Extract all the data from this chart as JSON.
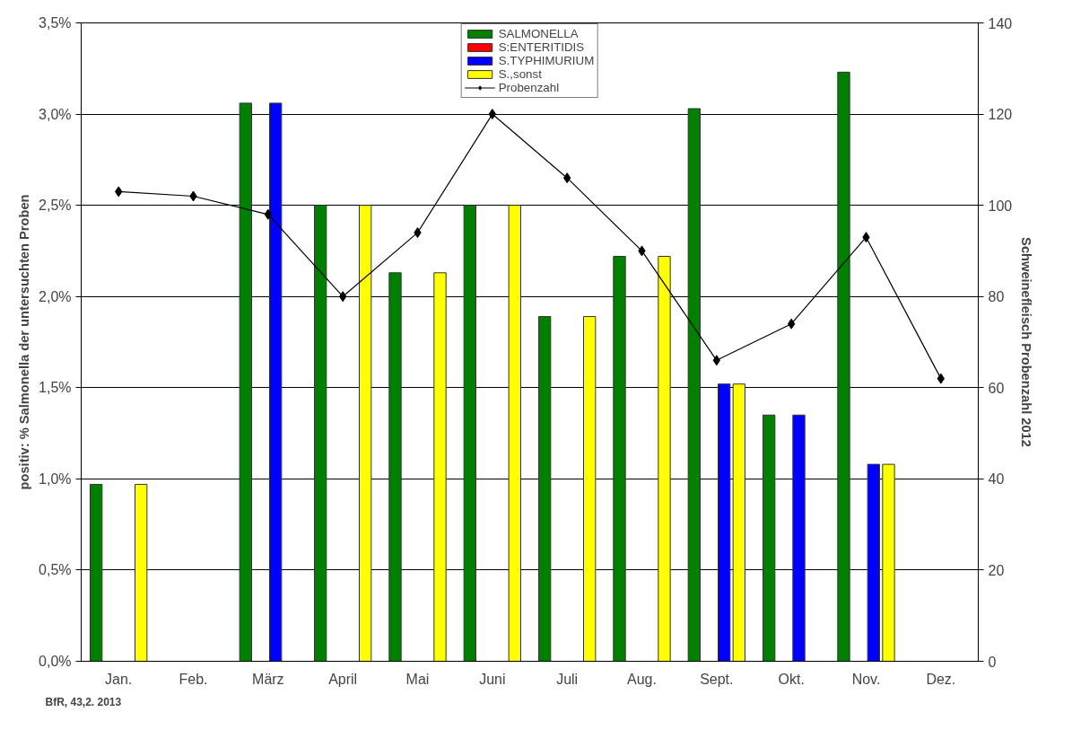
{
  "chart_data": {
    "type": "bar",
    "categories": [
      "Jan.",
      "Feb.",
      "März",
      "April",
      "Mai",
      "Juni",
      "Juli",
      "Aug.",
      "Sept.",
      "Okt.",
      "Nov.",
      "Dez."
    ],
    "series": [
      {
        "name": "SALMONELLA",
        "color": "#008000",
        "values": [
          0.97,
          null,
          3.06,
          2.5,
          2.13,
          2.5,
          1.89,
          2.22,
          3.03,
          1.35,
          3.23,
          null
        ]
      },
      {
        "name": "S:ENTERITIDIS",
        "color": "#ff0000",
        "values": [
          null,
          null,
          null,
          null,
          null,
          null,
          null,
          null,
          null,
          null,
          null,
          null
        ]
      },
      {
        "name": "S.TYPHIMURIUM",
        "color": "#0000ff",
        "values": [
          null,
          null,
          3.06,
          null,
          null,
          null,
          null,
          null,
          1.52,
          1.35,
          1.08,
          null
        ]
      },
      {
        "name": "S.,sonst",
        "color": "#ffff00",
        "values": [
          0.97,
          null,
          null,
          2.5,
          2.13,
          2.5,
          1.89,
          2.22,
          1.52,
          null,
          1.08,
          null
        ]
      },
      {
        "name": "Probenzahl",
        "type": "line",
        "axis": "y2",
        "color": "#000000",
        "marker": "diamond",
        "values": [
          103,
          102,
          98,
          80,
          94,
          120,
          106,
          90,
          66,
          74,
          93,
          62
        ]
      }
    ],
    "ylabel": "positiv: % Salmonella der untersuchten Proben",
    "y2label": "Schweinefleisch Probenzahl 2012",
    "ylim": [
      0,
      3.5
    ],
    "yticks": [
      {
        "value": 0,
        "label": "0,0%"
      },
      {
        "value": 0.5,
        "label": "0,5%"
      },
      {
        "value": 1.0,
        "label": "1,0%"
      },
      {
        "value": 1.5,
        "label": "1,5%"
      },
      {
        "value": 2.0,
        "label": "2,0%"
      },
      {
        "value": 2.5,
        "label": "2,5%"
      },
      {
        "value": 3.0,
        "label": "3,0%"
      },
      {
        "value": 3.5,
        "label": "3,5%"
      }
    ],
    "y2lim": [
      0,
      140
    ],
    "y2ticks": [
      0,
      20,
      40,
      60,
      80,
      100,
      120,
      140
    ],
    "grid": "y",
    "legend": "top",
    "annotations": [
      "BfR, 43,2. 2013"
    ]
  }
}
